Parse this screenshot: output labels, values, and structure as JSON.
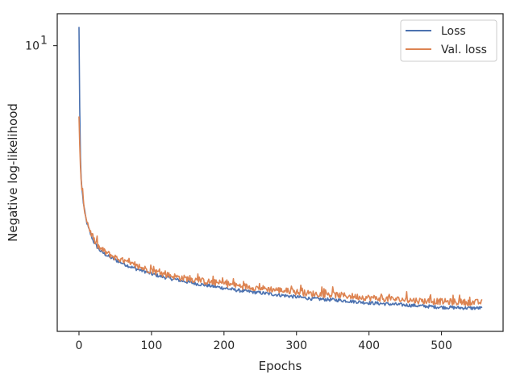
{
  "chart_data": {
    "type": "line",
    "xlabel": "Epochs",
    "ylabel": "Negative log-likelihood",
    "yscale": "log",
    "xlim": [
      -30,
      585
    ],
    "ylim": [
      1.36,
      12.5
    ],
    "xticks": [
      0,
      100,
      200,
      300,
      400,
      500
    ],
    "yticks": [
      {
        "value": 10,
        "base": "10",
        "exp": "1"
      }
    ],
    "grid": false,
    "legend_position": "top-right",
    "series": [
      {
        "name": "Loss",
        "color": "#4c72b0",
        "x": [
          0,
          1,
          2,
          3,
          4,
          6,
          8,
          10,
          13,
          16,
          20,
          25,
          30,
          40,
          50,
          60,
          70,
          80,
          90,
          100,
          120,
          140,
          160,
          180,
          200,
          220,
          240,
          260,
          280,
          300,
          320,
          340,
          360,
          380,
          400,
          420,
          440,
          460,
          480,
          500,
          520,
          540,
          556
        ],
        "values": [
          11.4,
          6.5,
          4.6,
          3.95,
          3.7,
          3.35,
          3.12,
          2.95,
          2.8,
          2.68,
          2.55,
          2.45,
          2.38,
          2.3,
          2.24,
          2.19,
          2.14,
          2.1,
          2.07,
          2.03,
          1.98,
          1.94,
          1.9,
          1.87,
          1.84,
          1.81,
          1.79,
          1.77,
          1.75,
          1.73,
          1.71,
          1.7,
          1.69,
          1.675,
          1.66,
          1.65,
          1.64,
          1.63,
          1.62,
          1.61,
          1.605,
          1.6,
          1.6
        ]
      },
      {
        "name": "Val. loss",
        "color": "#dd8452",
        "x": [
          0,
          1,
          2,
          3,
          4,
          6,
          8,
          10,
          13,
          16,
          20,
          25,
          30,
          40,
          50,
          60,
          70,
          80,
          90,
          100,
          120,
          140,
          160,
          180,
          200,
          220,
          240,
          260,
          280,
          300,
          320,
          340,
          360,
          380,
          400,
          420,
          440,
          460,
          480,
          500,
          520,
          540,
          556
        ],
        "values": [
          6.1,
          5.0,
          4.3,
          3.9,
          3.65,
          3.35,
          3.15,
          3.0,
          2.84,
          2.72,
          2.59,
          2.48,
          2.42,
          2.34,
          2.28,
          2.23,
          2.18,
          2.14,
          2.11,
          2.08,
          2.02,
          1.98,
          1.95,
          1.92,
          1.9,
          1.87,
          1.85,
          1.83,
          1.81,
          1.79,
          1.77,
          1.76,
          1.75,
          1.735,
          1.72,
          1.71,
          1.7,
          1.69,
          1.68,
          1.675,
          1.67,
          1.665,
          1.665
        ]
      }
    ]
  }
}
